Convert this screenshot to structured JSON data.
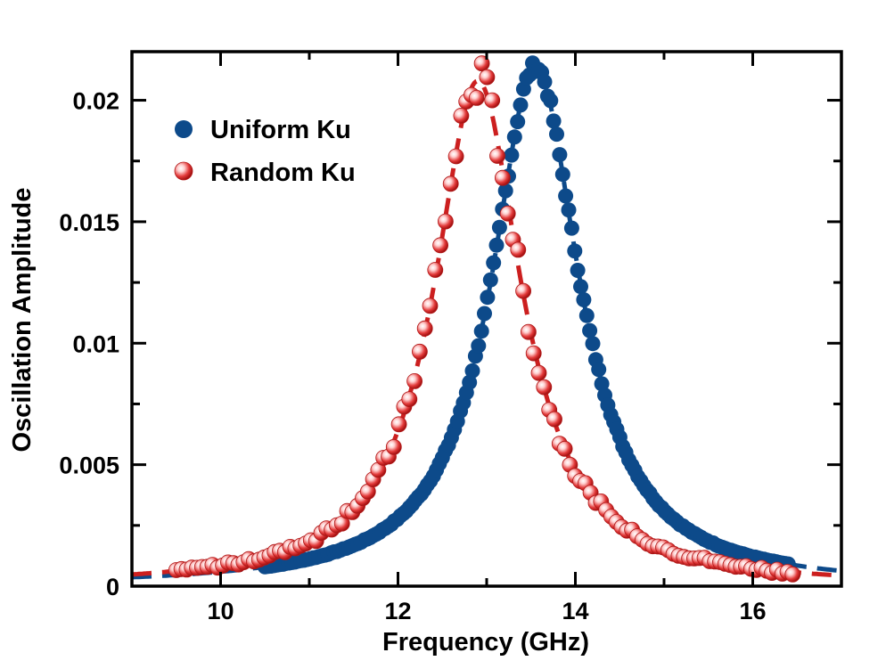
{
  "colors": {
    "uniform": "#0d4a8a",
    "random": "#cc1f1f",
    "random_highlight": "#ffd7d7",
    "axis": "#000000"
  },
  "chart_data": {
    "type": "scatter",
    "title": "",
    "xlabel": "Frequency (GHz)",
    "ylabel": "Oscillation Amplitude",
    "xlim": [
      9,
      17
    ],
    "ylim": [
      0,
      0.022
    ],
    "x_ticks": [
      10,
      12,
      14,
      16
    ],
    "x_tick_labels": [
      "10",
      "12",
      "14",
      "16"
    ],
    "y_ticks": [
      0,
      0.005,
      0.01,
      0.015,
      0.02
    ],
    "y_tick_labels": [
      "0",
      "0.005",
      "0.01",
      "0.015",
      "0.02"
    ],
    "grid": false,
    "legend_position": "top-left",
    "series": [
      {
        "name": "Uniform Ku",
        "marker": "filled-circle",
        "fit_line": "dashed",
        "fit": {
          "peak_x": 13.55,
          "peak_y": 0.0214,
          "half_width": 0.6,
          "baseline": 0.0
        },
        "x_range": [
          10.5,
          16.4
        ],
        "points": 175
      },
      {
        "name": "Random Ku",
        "marker": "shaded-sphere",
        "fit_line": "dashed",
        "fit": {
          "peak_x": 12.9,
          "peak_y": 0.0208,
          "half_width": 0.6,
          "baseline": 0.0
        },
        "x_range": [
          9.5,
          16.45
        ],
        "points": 120
      }
    ]
  }
}
